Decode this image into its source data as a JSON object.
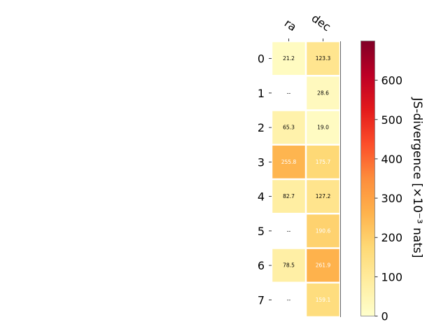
{
  "chart_data": {
    "type": "heatmap",
    "title": "",
    "columns": [
      "ra",
      "dec"
    ],
    "rows": [
      "0",
      "1",
      "2",
      "3",
      "4",
      "5",
      "6",
      "7"
    ],
    "values": [
      [
        21.2,
        123.3
      ],
      [
        null,
        28.6
      ],
      [
        65.3,
        19.0
      ],
      [
        255.8,
        175.7
      ],
      [
        82.7,
        127.2
      ],
      [
        null,
        190.6
      ],
      [
        78.5,
        261.9
      ],
      [
        null,
        159.1
      ]
    ],
    "cell_labels": [
      [
        "21.2",
        "123.3"
      ],
      [
        "--",
        "28.6"
      ],
      [
        "65.3",
        "19.0"
      ],
      [
        "255.8",
        "175.7"
      ],
      [
        "82.7",
        "127.2"
      ],
      [
        "--",
        "190.6"
      ],
      [
        "78.5",
        "261.9"
      ],
      [
        "--",
        "159.1"
      ]
    ],
    "colorbar": {
      "label": "JS-divergence [×10⁻³ nats]",
      "range": [
        0,
        700
      ],
      "ticks": [
        "0",
        "100",
        "200",
        "300",
        "400",
        "500",
        "600"
      ],
      "colormap": "YlOrRd"
    },
    "grid": false,
    "legend": "colorbar-right",
    "colors": {
      "cell_border": "#ffffff",
      "text_dark": "#000000",
      "text_light": "#ffffff"
    }
  }
}
